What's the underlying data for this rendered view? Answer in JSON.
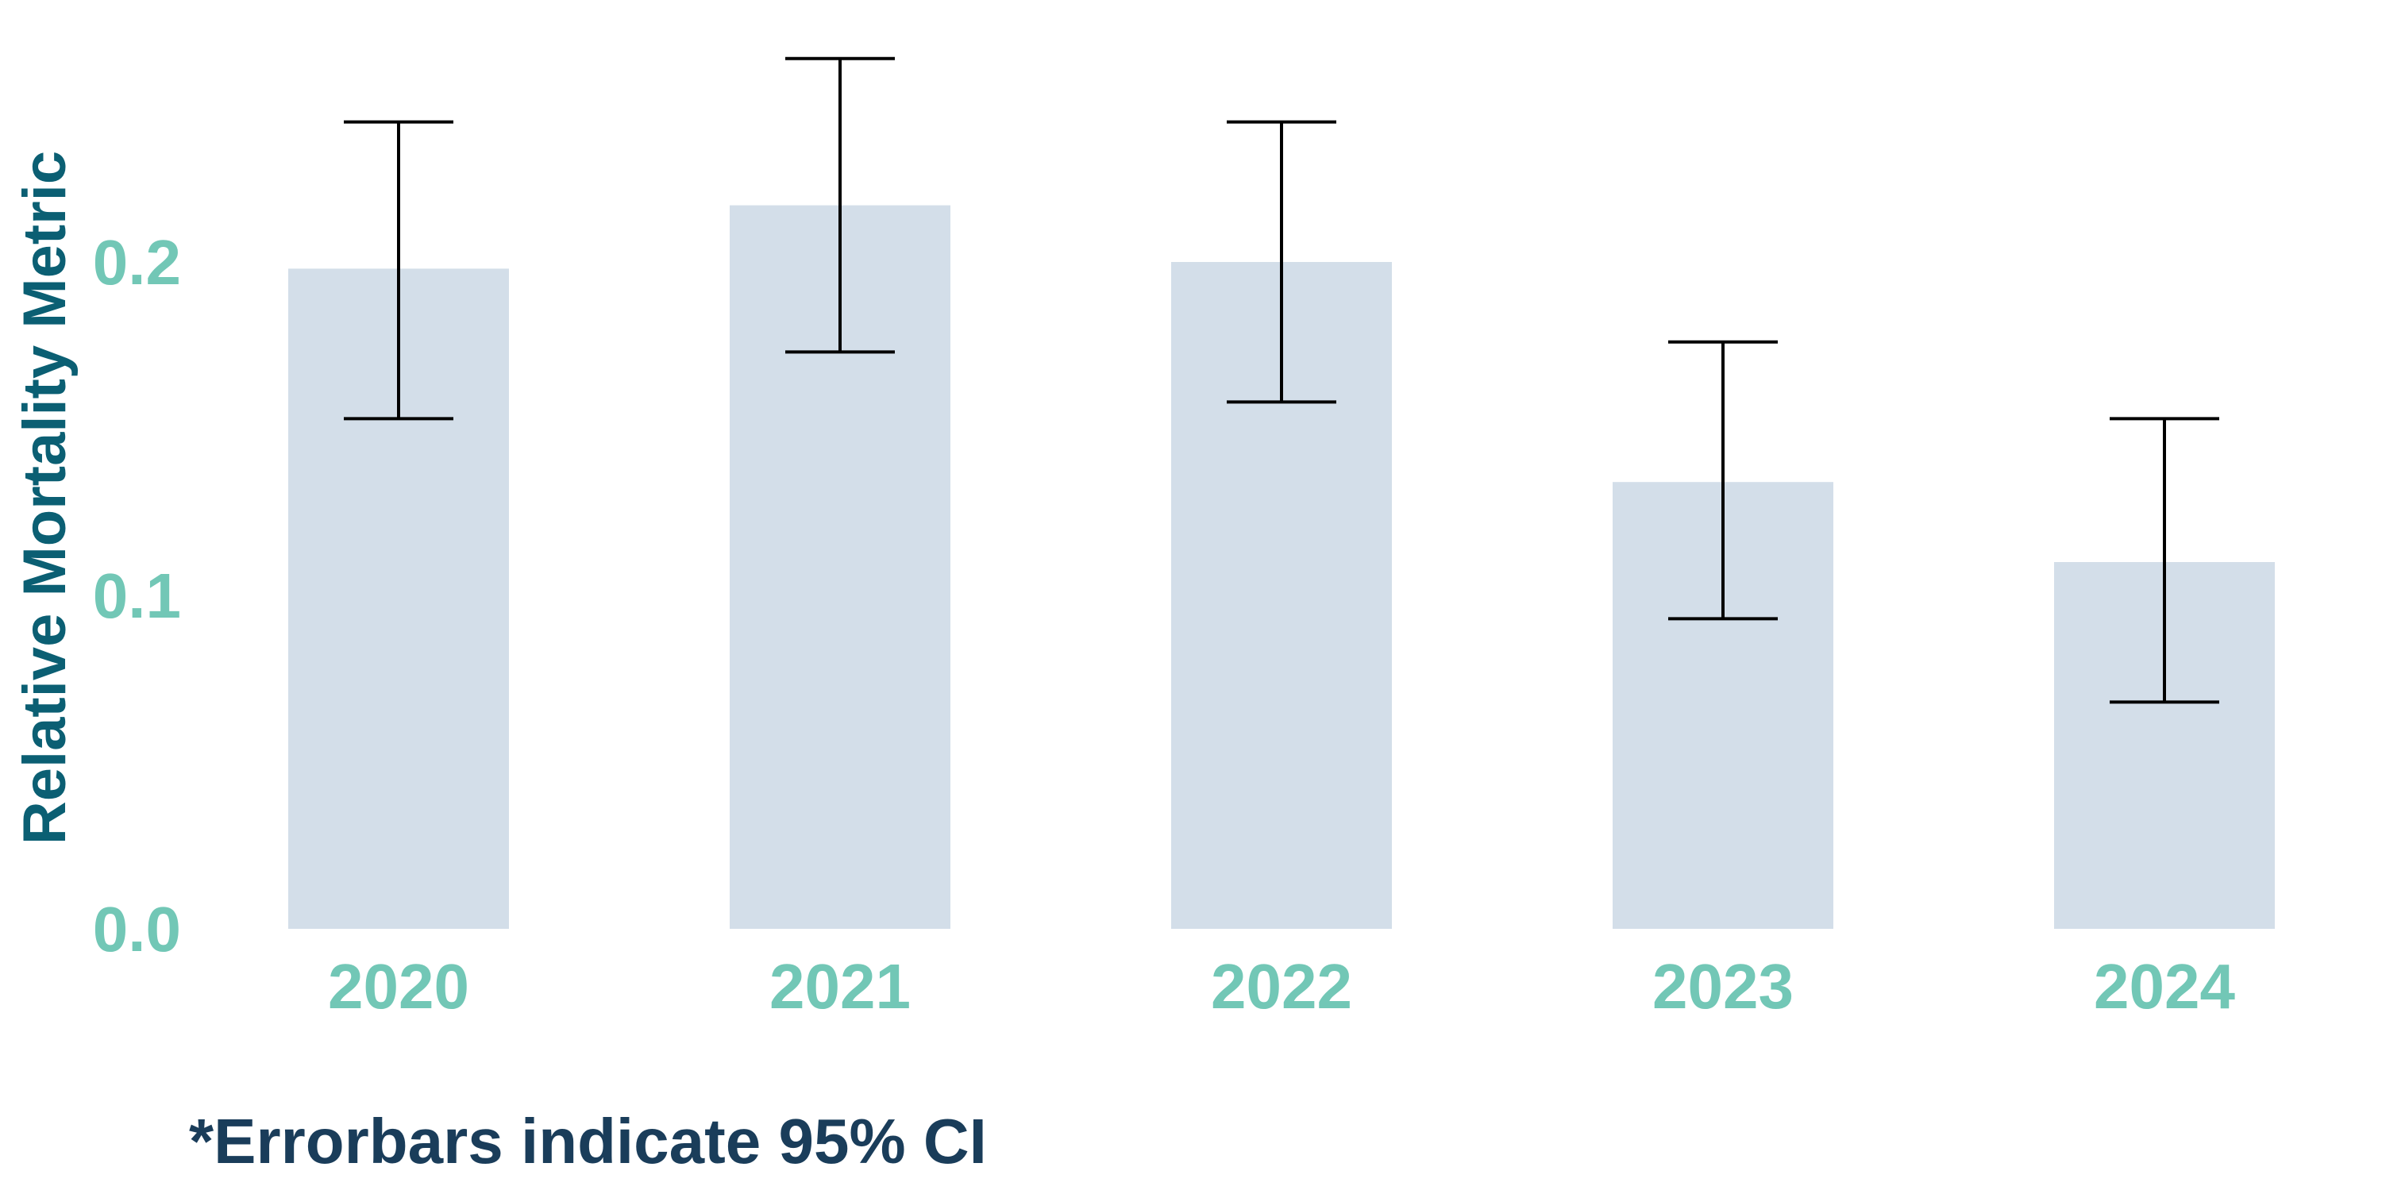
{
  "colors": {
    "bar": "#d3dee9",
    "tick_text": "#72c7b6",
    "ylabel_text": "#0b5f73",
    "footnote_text": "#1a3d5a",
    "errorbar": "#000000"
  },
  "chart_data": {
    "type": "bar",
    "title": "",
    "xlabel": "",
    "ylabel": "Relative Mortality Metric",
    "categories": [
      "2020",
      "2021",
      "2022",
      "2023",
      "2024"
    ],
    "values": [
      0.198,
      0.217,
      0.2,
      0.134,
      0.11
    ],
    "error_low": [
      0.153,
      0.173,
      0.158,
      0.093,
      0.068
    ],
    "error_high": [
      0.242,
      0.261,
      0.242,
      0.176,
      0.153
    ],
    "ylim": [
      0,
      0.26
    ],
    "yticks": [
      "0.0",
      "0.1",
      "0.2"
    ],
    "yticks_values": [
      0.0,
      0.1,
      0.2
    ],
    "grid": false,
    "legend": "none"
  },
  "footnote": "*Errorbars indicate 95% CI"
}
